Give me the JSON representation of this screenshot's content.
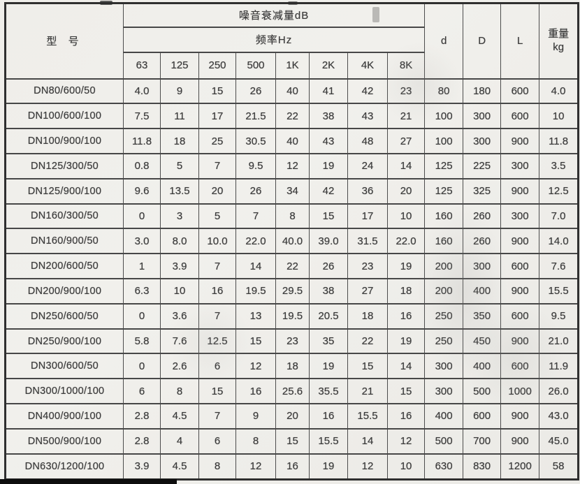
{
  "table": {
    "model_header": "型 号",
    "noise_header": "噪音衰减量dB",
    "freq_header": "频率Hz",
    "freq_labels": [
      "63",
      "125",
      "250",
      "500",
      "1K",
      "2K",
      "4K",
      "8K"
    ],
    "dim_headers": [
      "d",
      "D",
      "L"
    ],
    "weight_header": "重量",
    "weight_unit": "kg",
    "rows": [
      {
        "model": "DN80/600/50",
        "values": [
          "4.0",
          "9",
          "15",
          "26",
          "40",
          "41",
          "42",
          "23",
          "80",
          "180",
          "600",
          "4.0"
        ]
      },
      {
        "model": "DN100/600/100",
        "values": [
          "7.5",
          "11",
          "17",
          "21.5",
          "22",
          "38",
          "43",
          "21",
          "100",
          "300",
          "600",
          "10"
        ]
      },
      {
        "model": "DN100/900/100",
        "values": [
          "11.8",
          "18",
          "25",
          "30.5",
          "40",
          "43",
          "48",
          "27",
          "100",
          "300",
          "900",
          "11.8"
        ]
      },
      {
        "model": "DN125/300/50",
        "values": [
          "0.8",
          "5",
          "7",
          "9.5",
          "12",
          "19",
          "24",
          "14",
          "125",
          "225",
          "300",
          "3.5"
        ]
      },
      {
        "model": "DN125/900/100",
        "values": [
          "9.6",
          "13.5",
          "20",
          "26",
          "34",
          "42",
          "36",
          "20",
          "125",
          "325",
          "900",
          "12.5"
        ]
      },
      {
        "model": "DN160/300/50",
        "values": [
          "0",
          "3",
          "5",
          "7",
          "8",
          "15",
          "17",
          "10",
          "160",
          "260",
          "300",
          "7.0"
        ]
      },
      {
        "model": "DN160/900/50",
        "values": [
          "3.0",
          "8.0",
          "10.0",
          "22.0",
          "40.0",
          "39.0",
          "31.5",
          "22.0",
          "160",
          "260",
          "900",
          "14.0"
        ]
      },
      {
        "model": "DN200/600/50",
        "values": [
          "1",
          "3.9",
          "7",
          "14",
          "22",
          "26",
          "23",
          "19",
          "200",
          "300",
          "600",
          "7.6"
        ]
      },
      {
        "model": "DN200/900/100",
        "values": [
          "6.3",
          "10",
          "16",
          "19.5",
          "29.5",
          "38",
          "27",
          "18",
          "200",
          "400",
          "900",
          "15.5"
        ]
      },
      {
        "model": "DN250/600/50",
        "values": [
          "0",
          "3.6",
          "7",
          "13",
          "19.5",
          "20.5",
          "18",
          "16",
          "250",
          "350",
          "600",
          "9.5"
        ]
      },
      {
        "model": "DN250/900/100",
        "values": [
          "5.8",
          "7.6",
          "12.5",
          "15",
          "23",
          "35",
          "22",
          "19",
          "250",
          "450",
          "900",
          "21.0"
        ]
      },
      {
        "model": "DN300/600/50",
        "values": [
          "0",
          "2.6",
          "6",
          "12",
          "18",
          "19",
          "15",
          "14",
          "300",
          "400",
          "600",
          "11.9"
        ]
      },
      {
        "model": "DN300/1000/100",
        "values": [
          "6",
          "8",
          "15",
          "16",
          "25.6",
          "35.5",
          "21",
          "15",
          "300",
          "500",
          "1000",
          "26.0"
        ]
      },
      {
        "model": "DN400/900/100",
        "values": [
          "2.8",
          "4.5",
          "7",
          "9",
          "20",
          "16",
          "15.5",
          "16",
          "400",
          "600",
          "900",
          "43.0"
        ]
      },
      {
        "model": "DN500/900/100",
        "values": [
          "2.8",
          "4",
          "6",
          "8",
          "15",
          "15.5",
          "14",
          "12",
          "500",
          "700",
          "900",
          "45.0"
        ]
      },
      {
        "model": "DN630/1200/100",
        "values": [
          "3.9",
          "4.5",
          "8",
          "12",
          "16",
          "19",
          "12",
          "10",
          "630",
          "830",
          "1200",
          "58"
        ]
      }
    ]
  }
}
